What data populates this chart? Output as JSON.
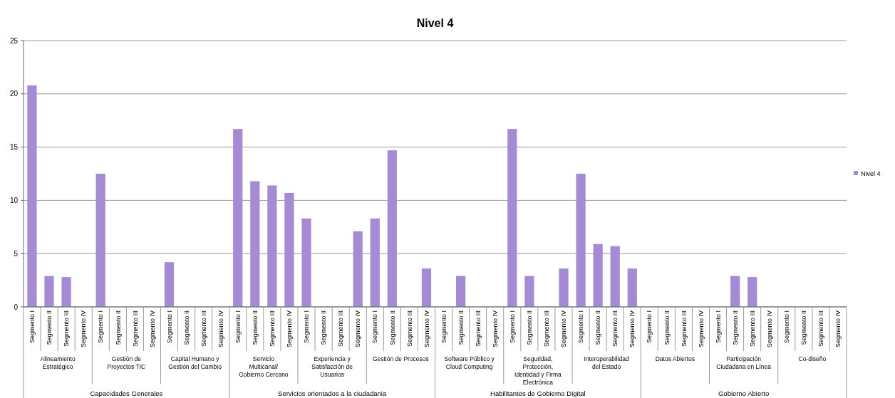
{
  "chart_data": {
    "type": "bar",
    "title": "Nivel 4",
    "categories": [
      "Segmento I",
      "Segmento II",
      "Segmento III",
      "Segmento IV",
      "Segmento I",
      "Segmento II",
      "Segmento III",
      "Segmento IV",
      "Segmento I",
      "Segmento II",
      "Segmento III",
      "Segmento IV",
      "Segmento I",
      "Segmento II",
      "Segmento III",
      "Segmento IV",
      "Segmento I",
      "Segmento II",
      "Segmento III",
      "Segmento IV",
      "Segmento I",
      "Segmento II",
      "Segmento III",
      "Segmento IV",
      "Segmento I",
      "Segmento II",
      "Segmento III",
      "Segmento IV",
      "Segmento I",
      "Segmento II",
      "Segmento III",
      "Segmento IV",
      "Segmento I",
      "Segmento II",
      "Segmento III",
      "Segmento IV",
      "Segmento I",
      "Segmento II",
      "Segmento III",
      "Segmento IV",
      "Segmento I",
      "Segmento II",
      "Segmento III",
      "Segmento IV",
      "Segmento I",
      "Segmento II",
      "Segmento III",
      "Segmento IV"
    ],
    "series": [
      {
        "name": "Nivel 4",
        "color": "#a58bd6",
        "values": [
          20.8,
          2.9,
          2.8,
          0,
          12.5,
          0,
          0,
          0,
          4.2,
          0,
          0,
          0,
          16.7,
          11.8,
          11.4,
          10.7,
          8.3,
          0,
          0,
          7.1,
          8.3,
          14.7,
          0,
          3.6,
          0,
          2.9,
          0,
          0,
          16.7,
          2.9,
          0,
          3.6,
          12.5,
          5.9,
          5.7,
          3.6,
          0,
          0,
          0,
          0,
          0,
          2.9,
          2.8,
          0,
          0,
          0,
          0,
          0
        ]
      }
    ],
    "annotations": [
      "Alineamiento Estratégico",
      "Gestión de Proyectos TIC",
      "Capital Humano y Gestión del Cambio",
      "Servicio Multicanal/ Gobierno Cercano",
      "Experiencia y Satisfacción de Usuarios",
      "Gestión de Procesos",
      "Software Público y Cloud Computing",
      "Seguridad, Protección, Identidad y Firma Electrónica",
      "Interoperabilidad del Estado",
      "Datos Abiertos",
      "Participación Ciudadana en Línea",
      "Co-diseño",
      "Capacidades Generales",
      "Servicios orientados a la ciudadania",
      "Habilitantes de Gobierno Digital",
      "Gobierno Abierto"
    ],
    "ylim": [
      0,
      25
    ],
    "yticks": [
      0,
      5,
      10,
      15,
      20,
      25
    ],
    "grid": "y",
    "legend": "right"
  }
}
